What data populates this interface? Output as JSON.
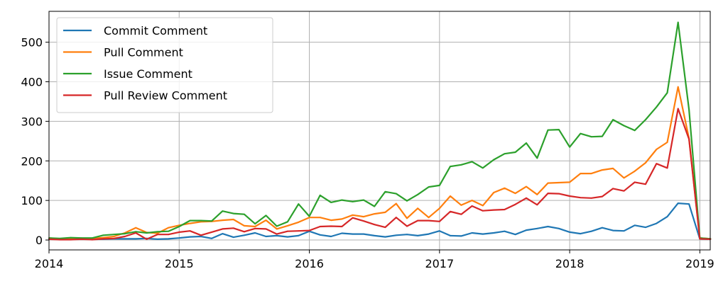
{
  "chart_data": {
    "type": "line",
    "title": "",
    "xlabel": "",
    "ylabel": "",
    "xlim": [
      2014.0,
      2019.08
    ],
    "ylim": [
      -25,
      578
    ],
    "x_ticks": [
      {
        "value": 2014,
        "label": "2014"
      },
      {
        "value": 2015,
        "label": "2015"
      },
      {
        "value": 2016,
        "label": "2016"
      },
      {
        "value": 2017,
        "label": "2017"
      },
      {
        "value": 2018,
        "label": "2018"
      },
      {
        "value": 2019,
        "label": "2019"
      }
    ],
    "y_ticks": [
      {
        "value": 0,
        "label": "0"
      },
      {
        "value": 100,
        "label": "100"
      },
      {
        "value": 200,
        "label": "200"
      },
      {
        "value": 300,
        "label": "300"
      },
      {
        "value": 400,
        "label": "400"
      },
      {
        "value": 500,
        "label": "500"
      }
    ],
    "grid": true,
    "legend_position": "top-left",
    "x": [
      2014.0,
      2014.083,
      2014.167,
      2014.25,
      2014.333,
      2014.417,
      2014.5,
      2014.583,
      2014.667,
      2014.75,
      2014.833,
      2014.917,
      2015.0,
      2015.083,
      2015.167,
      2015.25,
      2015.333,
      2015.417,
      2015.5,
      2015.583,
      2015.667,
      2015.75,
      2015.833,
      2015.917,
      2016.0,
      2016.083,
      2016.167,
      2016.25,
      2016.333,
      2016.417,
      2016.5,
      2016.583,
      2016.667,
      2016.75,
      2016.833,
      2016.917,
      2017.0,
      2017.083,
      2017.167,
      2017.25,
      2017.333,
      2017.417,
      2017.5,
      2017.583,
      2017.667,
      2017.75,
      2017.833,
      2017.917,
      2018.0,
      2018.083,
      2018.167,
      2018.25,
      2018.333,
      2018.417,
      2018.5,
      2018.583,
      2018.667,
      2018.75,
      2018.833,
      2018.917,
      2019.0,
      2019.083
    ],
    "series": [
      {
        "name": "Commit Comment",
        "color": "#1f77b4",
        "values": [
          3,
          2,
          2,
          3,
          2,
          2,
          3,
          3,
          3,
          4,
          2,
          3,
          5,
          8,
          9,
          4,
          16,
          7,
          12,
          18,
          9,
          11,
          8,
          11,
          22,
          13,
          9,
          17,
          15,
          15,
          11,
          8,
          12,
          14,
          11,
          15,
          23,
          11,
          10,
          18,
          15,
          18,
          22,
          14,
          25,
          29,
          34,
          29,
          20,
          16,
          22,
          31,
          24,
          23,
          37,
          32,
          42,
          59,
          93,
          91,
          3,
          2
        ],
        "dy": [
          1,
          1,
          1,
          1,
          1,
          1,
          1,
          1,
          1,
          1,
          1,
          1,
          1,
          1,
          1,
          1,
          1,
          1,
          1,
          1,
          1,
          1,
          1,
          1,
          1,
          1,
          1,
          1,
          1,
          1,
          1,
          1,
          1,
          1,
          1,
          1,
          1,
          1,
          1,
          1,
          1,
          1,
          1,
          1,
          1,
          1,
          1,
          1,
          1,
          1,
          1,
          1,
          1,
          1,
          1,
          1,
          1,
          1,
          1,
          1,
          1,
          1
        ]
      },
      {
        "name": "Pull Comment",
        "color": "#ff7f0e",
        "values": [
          5,
          3,
          3,
          4,
          4,
          6,
          9,
          18,
          31,
          19,
          17,
          31,
          37,
          42,
          46,
          47,
          50,
          52,
          36,
          34,
          50,
          28,
          36,
          45,
          57,
          57,
          50,
          53,
          63,
          59,
          66,
          70,
          92,
          55,
          80,
          57,
          80,
          111,
          88,
          100,
          87,
          120,
          131,
          118,
          135,
          115,
          144,
          145,
          146,
          168,
          168,
          177,
          181,
          157,
          174,
          195,
          229,
          247,
          387,
          257,
          5,
          3
        ],
        "dy": [
          1,
          1,
          1,
          1,
          1,
          1,
          1,
          1,
          1,
          1,
          1,
          1,
          1,
          1,
          1,
          1,
          1,
          1,
          1,
          1,
          1,
          1,
          1,
          1,
          1,
          1,
          1,
          1,
          1,
          1,
          1,
          1,
          1,
          1,
          1,
          1,
          1,
          1,
          1,
          1,
          1,
          1,
          1,
          1,
          1,
          1,
          1,
          1,
          1,
          1,
          1,
          1,
          1,
          1,
          1,
          1,
          1,
          1,
          1,
          1,
          1,
          1
        ]
      },
      {
        "name": "Issue Comment",
        "color": "#2ca02c",
        "values": [
          5,
          4,
          6,
          5,
          5,
          12,
          14,
          16,
          21,
          18,
          21,
          22,
          34,
          49,
          49,
          48,
          73,
          67,
          65,
          41,
          62,
          35,
          46,
          91,
          60,
          113,
          95,
          101,
          97,
          101,
          85,
          122,
          117,
          99,
          115,
          134,
          138,
          186,
          190,
          198,
          182,
          203,
          218,
          222,
          245,
          207,
          278,
          279,
          235,
          269,
          261,
          262,
          304,
          289,
          277,
          304,
          336,
          372,
          550,
          330,
          5,
          3
        ],
        "dy": [
          1,
          1,
          1,
          1,
          1,
          1,
          1,
          1,
          1,
          1,
          1,
          1,
          1,
          1,
          1,
          1,
          1,
          1,
          1,
          1,
          1,
          1,
          1,
          1,
          1,
          1,
          1,
          1,
          1,
          1,
          1,
          1,
          1,
          1,
          1,
          1,
          1,
          1,
          1,
          1,
          1,
          1,
          1,
          1,
          1,
          1,
          1,
          1,
          1,
          1,
          1,
          1,
          1,
          1,
          1,
          1,
          1,
          1,
          1,
          1,
          1,
          1
        ]
      },
      {
        "name": "Pull Review Comment",
        "color": "#d62728",
        "values": [
          2,
          1,
          1,
          2,
          1,
          3,
          4,
          9,
          18,
          2,
          14,
          14,
          20,
          23,
          12,
          20,
          28,
          30,
          21,
          29,
          28,
          15,
          22,
          23,
          24,
          34,
          35,
          34,
          56,
          48,
          39,
          32,
          57,
          35,
          49,
          49,
          47,
          72,
          65,
          86,
          74,
          76,
          77,
          90,
          106,
          89,
          118,
          117,
          111,
          107,
          106,
          110,
          130,
          124,
          146,
          141,
          193,
          182,
          332,
          255,
          3,
          2
        ],
        "dy": [
          1,
          1,
          1,
          1,
          1,
          1,
          1,
          1,
          1,
          1,
          1,
          1,
          1,
          1,
          1,
          1,
          1,
          1,
          1,
          1,
          1,
          1,
          1,
          1,
          1,
          1,
          1,
          1,
          1,
          1,
          1,
          1,
          1,
          1,
          1,
          1,
          1,
          1,
          1,
          1,
          1,
          1,
          1,
          1,
          1,
          1,
          1,
          1,
          1,
          1,
          1,
          1,
          1,
          1,
          1,
          1,
          1,
          1,
          1,
          1,
          1,
          1
        ]
      }
    ]
  }
}
